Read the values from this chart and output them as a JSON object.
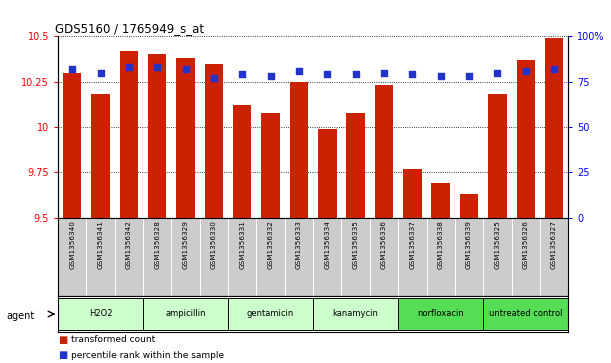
{
  "title": "GDS5160 / 1765949_s_at",
  "samples": [
    "GSM1356340",
    "GSM1356341",
    "GSM1356342",
    "GSM1356328",
    "GSM1356329",
    "GSM1356330",
    "GSM1356331",
    "GSM1356332",
    "GSM1356333",
    "GSM1356334",
    "GSM1356335",
    "GSM1356336",
    "GSM1356337",
    "GSM1356338",
    "GSM1356339",
    "GSM1356325",
    "GSM1356326",
    "GSM1356327"
  ],
  "bar_values": [
    10.3,
    10.18,
    10.42,
    10.4,
    10.38,
    10.35,
    10.12,
    10.08,
    10.25,
    9.99,
    10.08,
    10.23,
    9.77,
    9.69,
    9.63,
    10.18,
    10.37,
    10.49
  ],
  "blue_values": [
    82,
    80,
    83,
    83,
    82,
    77,
    79,
    78,
    81,
    79,
    79,
    80,
    79,
    78,
    78,
    80,
    81,
    82
  ],
  "ylim_left": [
    9.5,
    10.5
  ],
  "ylim_right": [
    0,
    100
  ],
  "yticks_left": [
    9.5,
    9.75,
    10.0,
    10.25,
    10.5
  ],
  "yticks_right": [
    0,
    25,
    50,
    75,
    100
  ],
  "groups": [
    {
      "label": "H2O2",
      "start": 0,
      "end": 2,
      "light": true
    },
    {
      "label": "ampicillin",
      "start": 3,
      "end": 5,
      "light": true
    },
    {
      "label": "gentamicin",
      "start": 6,
      "end": 8,
      "light": true
    },
    {
      "label": "kanamycin",
      "start": 9,
      "end": 11,
      "light": true
    },
    {
      "label": "norfloxacin",
      "start": 12,
      "end": 14,
      "light": false
    },
    {
      "label": "untreated control",
      "start": 15,
      "end": 17,
      "light": false
    }
  ],
  "color_light_green": "#ccffcc",
  "color_dark_green": "#55dd55",
  "bar_color": "#cc2200",
  "dot_color": "#2233cc",
  "bg_color": "#ffffff",
  "sample_bg_color": "#cccccc",
  "legend_red": "transformed count",
  "legend_blue": "percentile rank within the sample"
}
